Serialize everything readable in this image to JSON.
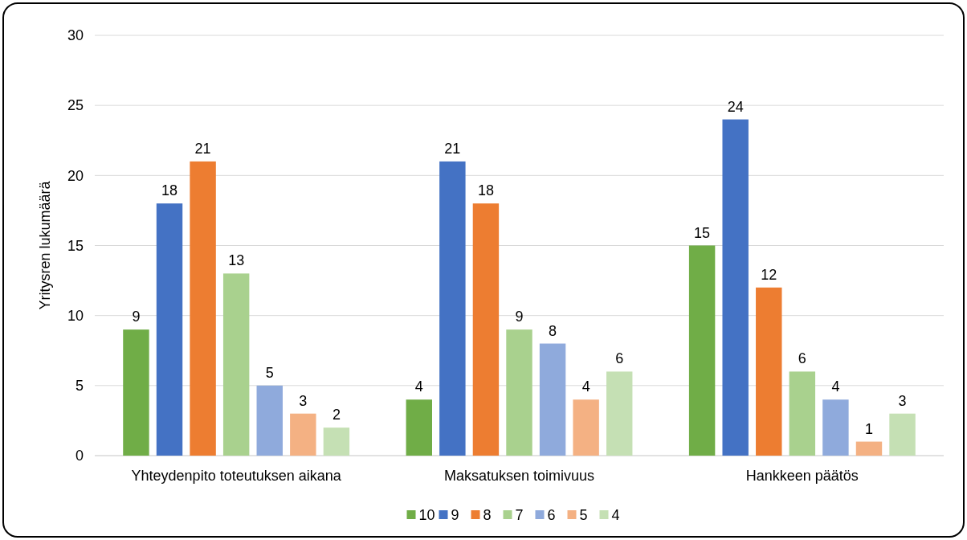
{
  "chart_data": {
    "type": "bar",
    "ylabel": "Yritysren lukumäärä",
    "categories": [
      "Yhteydenpito toteutuksen aikana",
      "Maksatuksen toimivuus",
      "Hankkeen päätös"
    ],
    "series": [
      {
        "name": "10",
        "color": "#70ad47",
        "values": [
          9,
          4,
          15
        ]
      },
      {
        "name": "9",
        "color": "#4472c4",
        "values": [
          18,
          21,
          24
        ]
      },
      {
        "name": "8",
        "color": "#ed7d31",
        "values": [
          21,
          18,
          12
        ]
      },
      {
        "name": "7",
        "color": "#a9d18e",
        "values": [
          13,
          9,
          6
        ]
      },
      {
        "name": "6",
        "color": "#8faadc",
        "values": [
          5,
          8,
          4
        ]
      },
      {
        "name": "5",
        "color": "#f4b183",
        "values": [
          3,
          4,
          1
        ]
      },
      {
        "name": "4",
        "color": "#c5e0b4",
        "values": [
          2,
          6,
          3
        ]
      }
    ],
    "ylim": [
      0,
      30
    ],
    "yticks": [
      0,
      5,
      10,
      15,
      20,
      25,
      30
    ],
    "grid": "y",
    "legend": "bottom",
    "data_labels": true
  }
}
